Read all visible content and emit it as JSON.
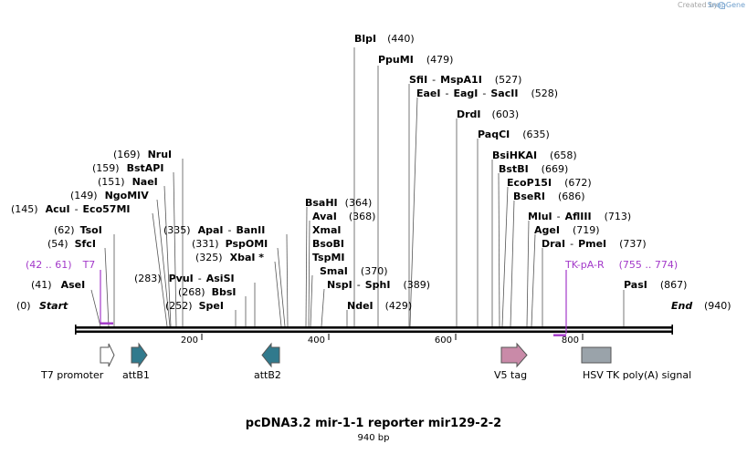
{
  "credit": {
    "text": "Created by",
    "brand": "SnapGene"
  },
  "title": "pcDNA3.2 mir-1-1 reporter mir129-2-2",
  "length_label": "940 bp",
  "sequence_length": 940,
  "start_label": {
    "name": "Start",
    "pos": "(0)"
  },
  "end_label": {
    "name": "End",
    "pos": "(940)"
  },
  "ticks": [
    "200",
    "400",
    "600",
    "800"
  ],
  "enzymes": [
    {
      "name": "AseI",
      "pos": "(41)"
    },
    {
      "name": "SfcI",
      "pos": "(54)"
    },
    {
      "name": "TsoI",
      "pos": "(62)"
    },
    {
      "name": "AcuI",
      "name2": "Eco57MI",
      "pos": "(145)"
    },
    {
      "name": "NgoMIV",
      "pos": "(149)"
    },
    {
      "name": "NaeI",
      "pos": "(151)"
    },
    {
      "name": "BstAPI",
      "pos": "(159)"
    },
    {
      "name": "NruI",
      "pos": "(169)"
    },
    {
      "name": "SpeI",
      "pos": "(252)"
    },
    {
      "name": "BbsI",
      "pos": "(268)"
    },
    {
      "name": "PvuI",
      "name2": "AsiSI",
      "pos": "(283)"
    },
    {
      "name": "XbaI *",
      "pos": "(325)"
    },
    {
      "name": "PspOMI",
      "pos": "(331)"
    },
    {
      "name": "ApaI",
      "name2": "BanII",
      "pos": "(335)"
    },
    {
      "name": "BsaHI",
      "pos": "(364)"
    },
    {
      "name": "AvaI",
      "pos": "(368)"
    },
    {
      "name": "XmaI",
      "pos": ""
    },
    {
      "name": "BsoBI",
      "pos": ""
    },
    {
      "name": "TspMI",
      "pos": ""
    },
    {
      "name": "SmaI",
      "pos": "(370)"
    },
    {
      "name": "NspI",
      "name2": "SphI",
      "pos": "(389)"
    },
    {
      "name": "NdeI",
      "pos": "(429)"
    },
    {
      "name": "BlpI",
      "pos": "(440)"
    },
    {
      "name": "PpuMI",
      "pos": "(479)"
    },
    {
      "name": "SfiI",
      "name2": "MspA1I",
      "pos": "(527)"
    },
    {
      "name": "EaeI",
      "name2": "EagI",
      "name3": "SacII",
      "pos": "(528)"
    },
    {
      "name": "DrdI",
      "pos": "(603)"
    },
    {
      "name": "PaqCI",
      "pos": "(635)"
    },
    {
      "name": "BsiHKAI",
      "pos": "(658)"
    },
    {
      "name": "BstBI",
      "pos": "(669)"
    },
    {
      "name": "EcoP15I",
      "pos": "(672)"
    },
    {
      "name": "BseRI",
      "pos": "(686)"
    },
    {
      "name": "MluI",
      "name2": "AflIII",
      "pos": "(713)"
    },
    {
      "name": "AgeI",
      "pos": "(719)"
    },
    {
      "name": "DraI",
      "name2": "PmeI",
      "pos": "(737)"
    },
    {
      "name": "PasI",
      "pos": "(867)"
    }
  ],
  "primers": [
    {
      "name": "T7",
      "range": "(42 .. 61)"
    },
    {
      "name": "TK-pA-R",
      "range": "(755 .. 774)"
    }
  ],
  "features": [
    {
      "name": "T7 promoter",
      "color": "#ffffff"
    },
    {
      "name": "attB1",
      "color": "#317a8d"
    },
    {
      "name": "attB2",
      "color": "#317a8d"
    },
    {
      "name": "V5 tag",
      "color": "#c98aa8"
    },
    {
      "name": "HSV TK poly(A) signal",
      "color": "#9aa3aa"
    }
  ],
  "colors": {
    "primer": "#a339c9",
    "backbone": "#000000"
  }
}
